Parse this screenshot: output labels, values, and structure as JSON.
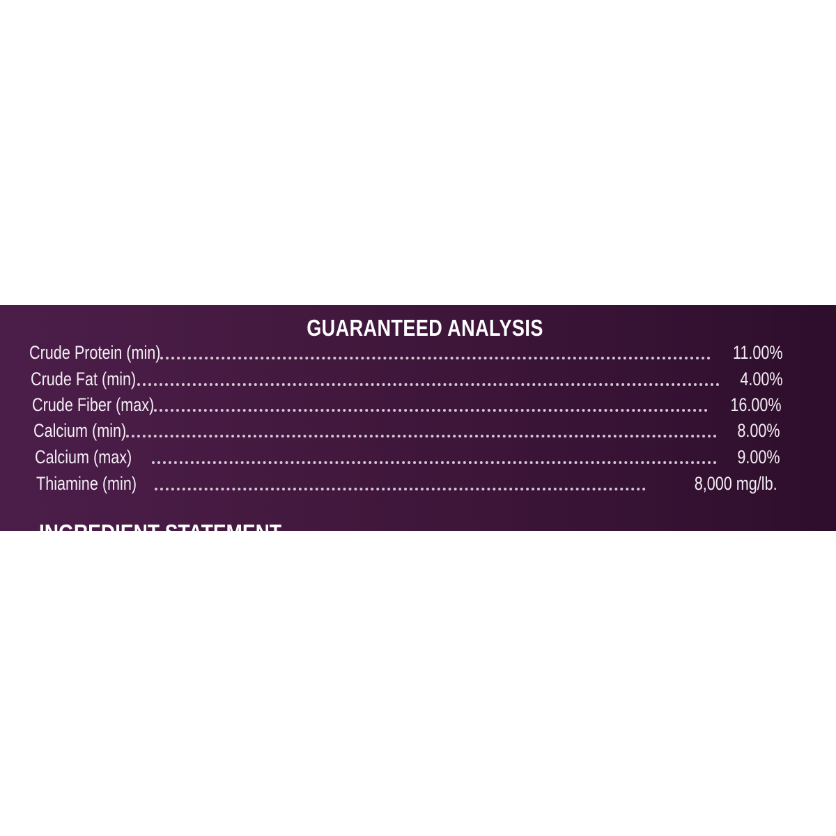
{
  "label": {
    "title": "GUARANTEED ANALYSIS",
    "rows": [
      {
        "name": "Crude Protein (min)",
        "value": "11.00%"
      },
      {
        "name": "Crude Fat (min)",
        "value": "4.00%"
      },
      {
        "name": "Crude Fiber (max)",
        "value": "16.00%"
      },
      {
        "name": "Calcium (min)",
        "value": "8.00%"
      },
      {
        "name": "Calcium (max)",
        "value": "9.00%"
      },
      {
        "name": "Thiamine (min)",
        "value": "8,000 mg/lb."
      }
    ],
    "next_heading": "INGREDIENT STATEMENT",
    "colors": {
      "background": "#42183f",
      "text": "#ffffff"
    }
  }
}
